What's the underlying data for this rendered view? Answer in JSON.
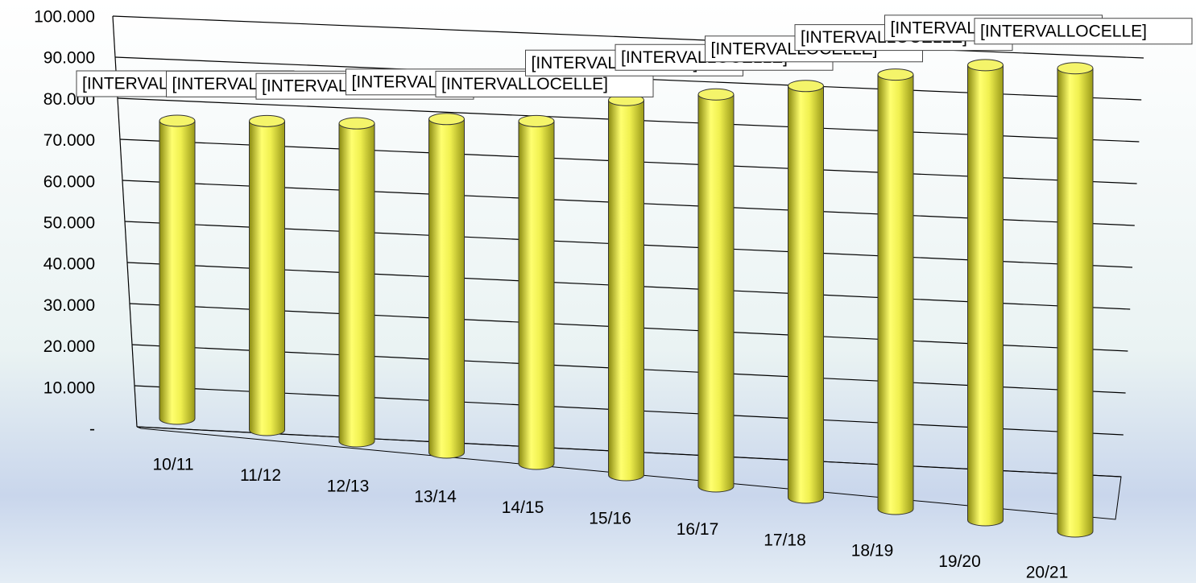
{
  "chart_data": {
    "type": "bar3d",
    "categories": [
      "10/11",
      "11/12",
      "12/13",
      "13/14",
      "14/15",
      "15/16",
      "16/17",
      "17/18",
      "18/19",
      "19/20",
      "20/21"
    ],
    "values": [
      74000,
      74500,
      74500,
      76000,
      76000,
      81000,
      82500,
      84500,
      87000,
      89000,
      88500
    ],
    "data_labels": [
      "[INTERVALLOCELLE]",
      "[INTERVALLOCELLE]",
      "[INTERVALLOCELLE]",
      "[INTERVALLOCELLE]",
      "[INTERVALLOCELLE]",
      "[INTERVALLOCELLE]",
      "[INTERVALLOCELLE]",
      "[INTERVALLOCELLE]",
      "[INTERVALLOCELLE]",
      "[INTERVALLOCELLE]",
      "[INTERVALLOCELLE]"
    ],
    "color": "#e8e84a",
    "ylim": [
      0,
      100000
    ],
    "yticks": [
      {
        "value": 0,
        "label": "-"
      },
      {
        "value": 10000,
        "label": "10.000"
      },
      {
        "value": 20000,
        "label": "20.000"
      },
      {
        "value": 30000,
        "label": "30.000"
      },
      {
        "value": 40000,
        "label": "40.000"
      },
      {
        "value": 50000,
        "label": "50.000"
      },
      {
        "value": 60000,
        "label": "60.000"
      },
      {
        "value": 70000,
        "label": "70.000"
      },
      {
        "value": 80000,
        "label": "80.000"
      },
      {
        "value": 90000,
        "label": "90.000"
      },
      {
        "value": 100000,
        "label": "100.000"
      }
    ],
    "grid": true
  }
}
